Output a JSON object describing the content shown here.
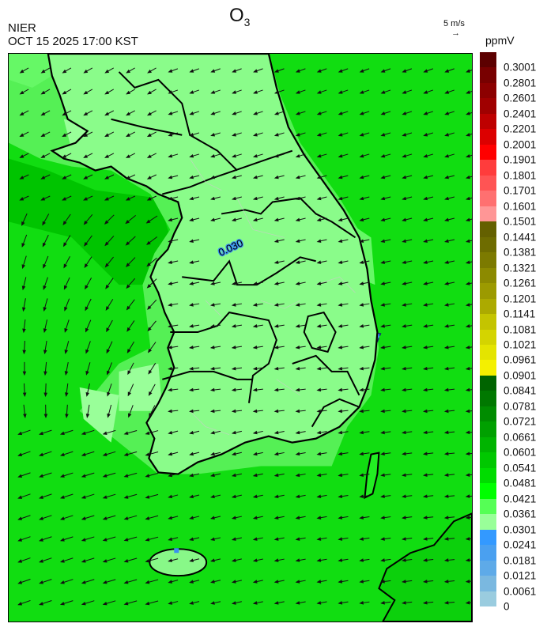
{
  "header": {
    "title": "O",
    "title_sub": "3",
    "org": "NIER",
    "datetime": "OCT 15 2025 17:00 KST",
    "vector_scale": "5 m/s",
    "vector_arrow": "→"
  },
  "legend": {
    "unit": "ppmV",
    "labels": [
      "0.3001",
      "0.2801",
      "0.2601",
      "0.2401",
      "0.2201",
      "0.2001",
      "0.1901",
      "0.1801",
      "0.1701",
      "0.1601",
      "0.1501",
      "0.1441",
      "0.1381",
      "0.1321",
      "0.1261",
      "0.1201",
      "0.1141",
      "0.1081",
      "0.1021",
      "0.0961",
      "0.0901",
      "0.0841",
      "0.0781",
      "0.0721",
      "0.0661",
      "0.0601",
      "0.0541",
      "0.0481",
      "0.0421",
      "0.0361",
      "0.0301",
      "0.0241",
      "0.0181",
      "0.0121",
      "0.0061",
      "0"
    ],
    "colors": [
      "#5c0000",
      "#780000",
      "#8c0000",
      "#a00000",
      "#be0000",
      "#dc0000",
      "#ff0000",
      "#ff3c3c",
      "#ff5454",
      "#ff7070",
      "#ff9696",
      "#646000",
      "#6e6c00",
      "#7c7a00",
      "#8c8a00",
      "#9c9a00",
      "#acaa00",
      "#c4c400",
      "#d4d400",
      "#e4e400",
      "#f4f000",
      "#006400",
      "#007800",
      "#008c00",
      "#00a000",
      "#00b400",
      "#00c800",
      "#00dc00",
      "#00ff00",
      "#55ff55",
      "#99ff99",
      "#3399ff",
      "#4aa0f0",
      "#5eaae8",
      "#7ab8e0",
      "#9accdf"
    ]
  },
  "map": {
    "contour_label": "0.030",
    "sea_color": "#11dd11",
    "land_color": "#66f866",
    "low_color": "#99ff99",
    "blue_color": "#3a90f0"
  }
}
